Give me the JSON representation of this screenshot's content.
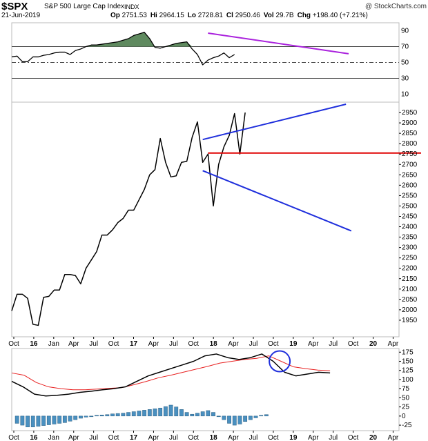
{
  "header": {
    "symbol": "$SPX",
    "name": "S&P 500 Large Cap Index",
    "exchange": "INDX",
    "date": "21-Jun-2019",
    "credit": "@ StockCharts.com",
    "quote": [
      {
        "label": "Op",
        "value": "2751.53"
      },
      {
        "label": "Hi",
        "value": "2964.15"
      },
      {
        "label": "Lo",
        "value": "2728.81"
      },
      {
        "label": "Cl",
        "value": "2950.46"
      },
      {
        "label": "Vol",
        "value": "29.7B"
      },
      {
        "label": "Chg",
        "value": "+198.40 (+7.21%)"
      }
    ]
  },
  "colors": {
    "price": "#000000",
    "trendline_blue": "#1f2fdc",
    "support_red": "#e00000",
    "rsi_trend_purple": "#aa22dd",
    "rsi_fill": "#5f8a5f",
    "signal_line": "#e82020",
    "histogram": "#4a90c0",
    "circle": "#1f2fdc"
  },
  "chart_data": [
    {
      "panel": "rsi",
      "type": "line",
      "x_axis": [
        "Oct",
        "16",
        "Jan",
        "Apr",
        "Jul",
        "Oct",
        "17",
        "Apr",
        "Jul",
        "Oct",
        "18",
        "Apr",
        "Jul",
        "Oct",
        "19",
        "Apr",
        "Jul",
        "Oct",
        "20",
        "Apr"
      ],
      "y_ticks": [
        10,
        30,
        50,
        70,
        90
      ],
      "ylim": [
        0,
        100
      ],
      "reference_lines": [
        30,
        50,
        70
      ],
      "series": [
        {
          "values": [
            57,
            58,
            51,
            51,
            57,
            57,
            59,
            60,
            62,
            63,
            63,
            60,
            65,
            67,
            70,
            72,
            72,
            73,
            74,
            75,
            76,
            78,
            80,
            84,
            86,
            88,
            80,
            69,
            68,
            70,
            72,
            74,
            75,
            76,
            67,
            60,
            47,
            53,
            56,
            58,
            62,
            56,
            60
          ]
        }
      ],
      "annotations": [
        {
          "type": "trendline",
          "from": [
            37,
            87
          ],
          "to": [
            63.5,
            61
          ]
        }
      ]
    },
    {
      "panel": "price",
      "type": "line",
      "y_ticks": [
        1950,
        2000,
        2050,
        2100,
        2150,
        2200,
        2250,
        2300,
        2350,
        2400,
        2450,
        2500,
        2550,
        2600,
        2650,
        2700,
        2750,
        2800,
        2850,
        2900,
        2950
      ],
      "ylim": [
        1870,
        3000
      ],
      "series": [
        {
          "values": [
            1995,
            2075,
            2075,
            2055,
            1930,
            1925,
            2060,
            2065,
            2095,
            2095,
            2170,
            2170,
            2165,
            2125,
            2200,
            2240,
            2280,
            2360,
            2360,
            2385,
            2420,
            2440,
            2480,
            2480,
            2530,
            2580,
            2650,
            2675,
            2825,
            2710,
            2640,
            2645,
            2710,
            2715,
            2830,
            2905,
            2710,
            2750,
            2500,
            2700,
            2785,
            2840,
            2945,
            2750,
            2950
          ]
        }
      ],
      "annotations": [
        {
          "type": "trendline",
          "from": [
            36,
            2820
          ],
          "to": [
            63,
            2990
          ]
        },
        {
          "type": "trendline",
          "from": [
            36,
            2670
          ],
          "to": [
            64,
            2380
          ]
        },
        {
          "type": "horizontal_line",
          "value": 2755
        }
      ]
    },
    {
      "panel": "macd",
      "type": "line",
      "y_ticks": [
        -25,
        0,
        25,
        50,
        75,
        100,
        125,
        150,
        175
      ],
      "ylim": [
        -40,
        185
      ],
      "series": [
        {
          "values": [
            95,
            80,
            60,
            55,
            57,
            60,
            65,
            68,
            72,
            75,
            80,
            95,
            110,
            120,
            130,
            140,
            150,
            165,
            170,
            160,
            155,
            160,
            170,
            150,
            120,
            110,
            115,
            120,
            118
          ]
        },
        {
          "values": [
            118,
            112,
            92,
            80,
            75,
            72,
            72,
            74,
            76,
            78,
            86,
            95,
            105,
            112,
            120,
            128,
            136,
            145,
            150,
            155,
            158,
            165,
            150,
            135,
            130,
            126,
            124
          ]
        }
      ],
      "histogram": [
        -20,
        -25,
        -30,
        -30,
        -28,
        -26,
        -24,
        -22,
        -20,
        -18,
        -14,
        -10,
        -6,
        -3,
        -1,
        2,
        3,
        4,
        6,
        7,
        8,
        10,
        12,
        14,
        16,
        18,
        20,
        22,
        26,
        30,
        25,
        18,
        10,
        5,
        8,
        12,
        15,
        10,
        0,
        -10,
        -20,
        -25,
        -22,
        -15,
        -10,
        -5,
        2,
        4
      ]
    }
  ]
}
